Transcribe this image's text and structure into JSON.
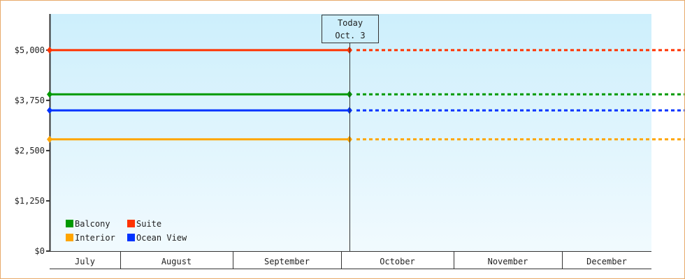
{
  "chart_data": {
    "type": "line",
    "title": "",
    "xlabel": "",
    "ylabel": "",
    "ylim": [
      0,
      5900
    ],
    "y_ticks": [
      0,
      1250,
      2500,
      3750,
      5000
    ],
    "y_tick_labels": [
      "$0",
      "$1,250",
      "$2,500",
      "$3,750",
      "$5,000"
    ],
    "x_categories": [
      "July",
      "August",
      "September",
      "October",
      "November",
      "December"
    ],
    "today_marker": {
      "line1": "Today",
      "line2": "Oct. 3"
    },
    "grid": false,
    "legend_placement": "bottom-left",
    "series": [
      {
        "name": "Balcony",
        "color": "#009900",
        "value": 3900
      },
      {
        "name": "Suite",
        "color": "#ff3300",
        "value": 5000
      },
      {
        "name": "Interior",
        "color": "#ffa500",
        "value": 2780
      },
      {
        "name": "Ocean View",
        "color": "#0033ff",
        "value": 3500
      }
    ],
    "note_style": "solid before today, dotted after today (projection)"
  }
}
